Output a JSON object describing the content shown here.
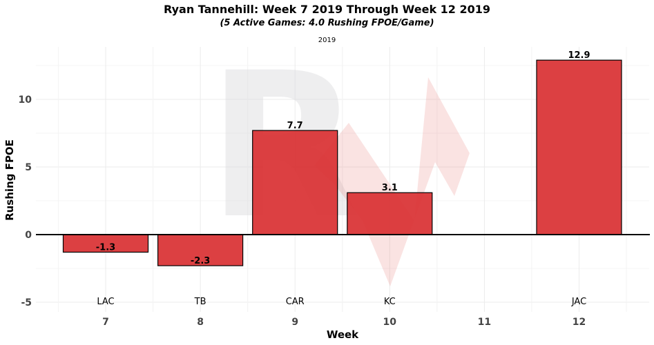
{
  "chart_data": {
    "type": "bar",
    "title": "Ryan Tannehill: Week 7 2019 Through Week 12 2019",
    "subtitle": "(5 Active Games: 4.0 Rushing FPOE/Game)",
    "facet_label": "2019",
    "xlabel": "Week",
    "ylabel": "Rushing FPOE",
    "categories": [
      "7",
      "8",
      "9",
      "10",
      "11",
      "12"
    ],
    "opponents": [
      "LAC",
      "TB",
      "CAR",
      "KC",
      "",
      "JAC"
    ],
    "values": [
      -1.3,
      -2.3,
      7.7,
      3.1,
      null,
      12.9
    ],
    "value_labels": [
      "-1.3",
      "-2.3",
      "7.7",
      "3.1",
      "",
      "12.9"
    ],
    "yticks": [
      -5,
      0,
      5,
      10
    ],
    "ylim": [
      -5.5,
      13.6
    ],
    "grid": true,
    "bar_color": "#d93134",
    "bar_edge_color": "#000000",
    "zero_line": true,
    "watermark_letter": "R"
  }
}
